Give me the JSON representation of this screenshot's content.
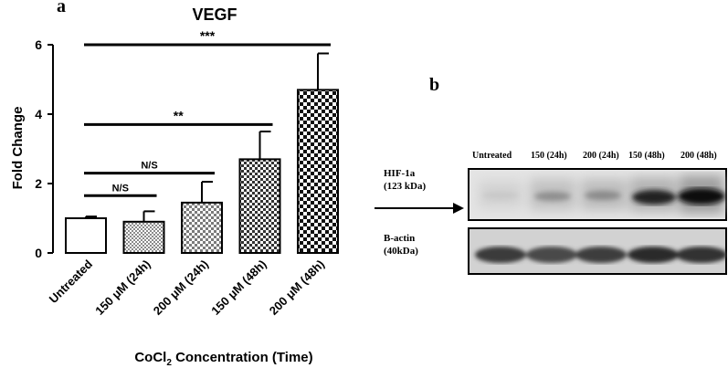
{
  "panels": {
    "a": "a",
    "b": "b"
  },
  "chart_data": {
    "type": "bar",
    "title": "VEGF",
    "ylabel": "Fold Change",
    "xlabel_main": "CoCl",
    "xlabel_sub": "2",
    "xlabel_rest": " Concentration (Time)",
    "ylim": [
      0,
      6
    ],
    "yticks": [
      "0",
      "2",
      "4",
      "6"
    ],
    "categories": [
      "Untreated",
      "150 μM (24h)",
      "200 μM (24h)",
      "150 μM (48h)",
      "200 μM (48h)"
    ],
    "values": [
      1.0,
      0.9,
      1.45,
      2.7,
      4.7
    ],
    "errors": [
      0.05,
      0.3,
      0.6,
      0.8,
      1.05
    ],
    "fills": [
      "white",
      "fine-check",
      "small-check",
      "dense-check",
      "large-check"
    ],
    "significance": [
      {
        "label": "N/S",
        "from": 0,
        "to": 1,
        "y": 1.65
      },
      {
        "label": "N/S",
        "from": 0,
        "to": 2,
        "y": 2.3
      },
      {
        "label": "**",
        "from": 0,
        "to": 3,
        "y": 3.7
      },
      {
        "label": "***",
        "from": 0,
        "to": 4,
        "y": 6.0
      }
    ]
  },
  "blot": {
    "columns": [
      "Untreated",
      "150 (24h)",
      "200 (24h)",
      "150 (48h)",
      "200 (48h)"
    ],
    "rows": [
      {
        "label_line1": "HIF-1a",
        "label_line2": "(123 kDa)"
      },
      {
        "label_line1": "B-actin",
        "label_line2": "(40kDa)"
      }
    ]
  }
}
